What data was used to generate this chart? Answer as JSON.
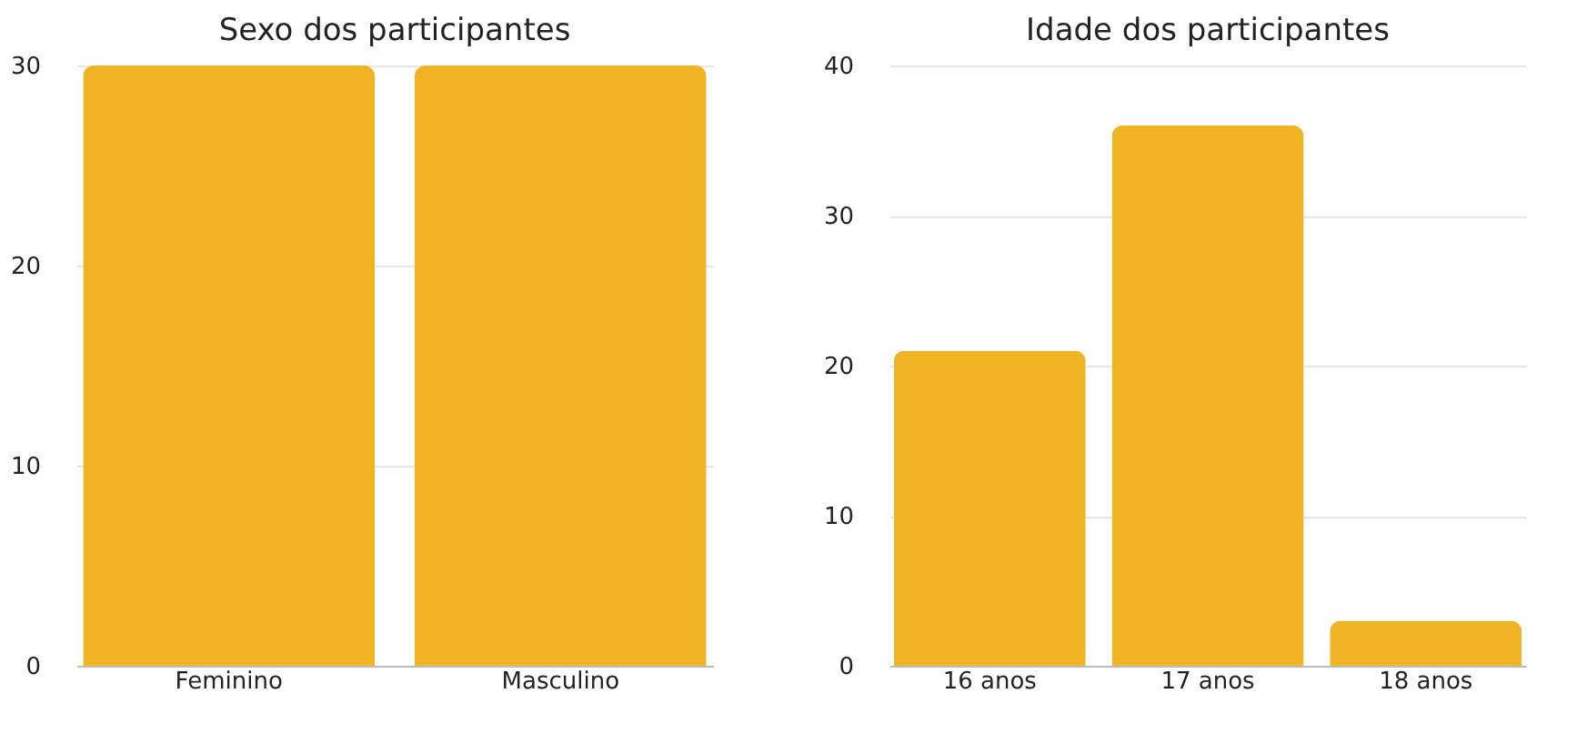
{
  "chart_data": [
    {
      "type": "bar",
      "title": "Sexo dos participantes",
      "categories": [
        "Feminino",
        "Masculino"
      ],
      "values": [
        30,
        30
      ],
      "color": "#f0b323",
      "ylim": [
        0,
        30
      ],
      "yticks": [
        0,
        10,
        20,
        30
      ],
      "grid": "y"
    },
    {
      "type": "bar",
      "title": "Idade dos participantes",
      "categories": [
        "16 anos",
        "17 anos",
        "18 anos"
      ],
      "values": [
        21,
        36,
        3
      ],
      "color": "#f0b323",
      "ylim": [
        0,
        40
      ],
      "yticks": [
        0,
        10,
        20,
        30,
        40
      ],
      "grid": "y"
    }
  ]
}
